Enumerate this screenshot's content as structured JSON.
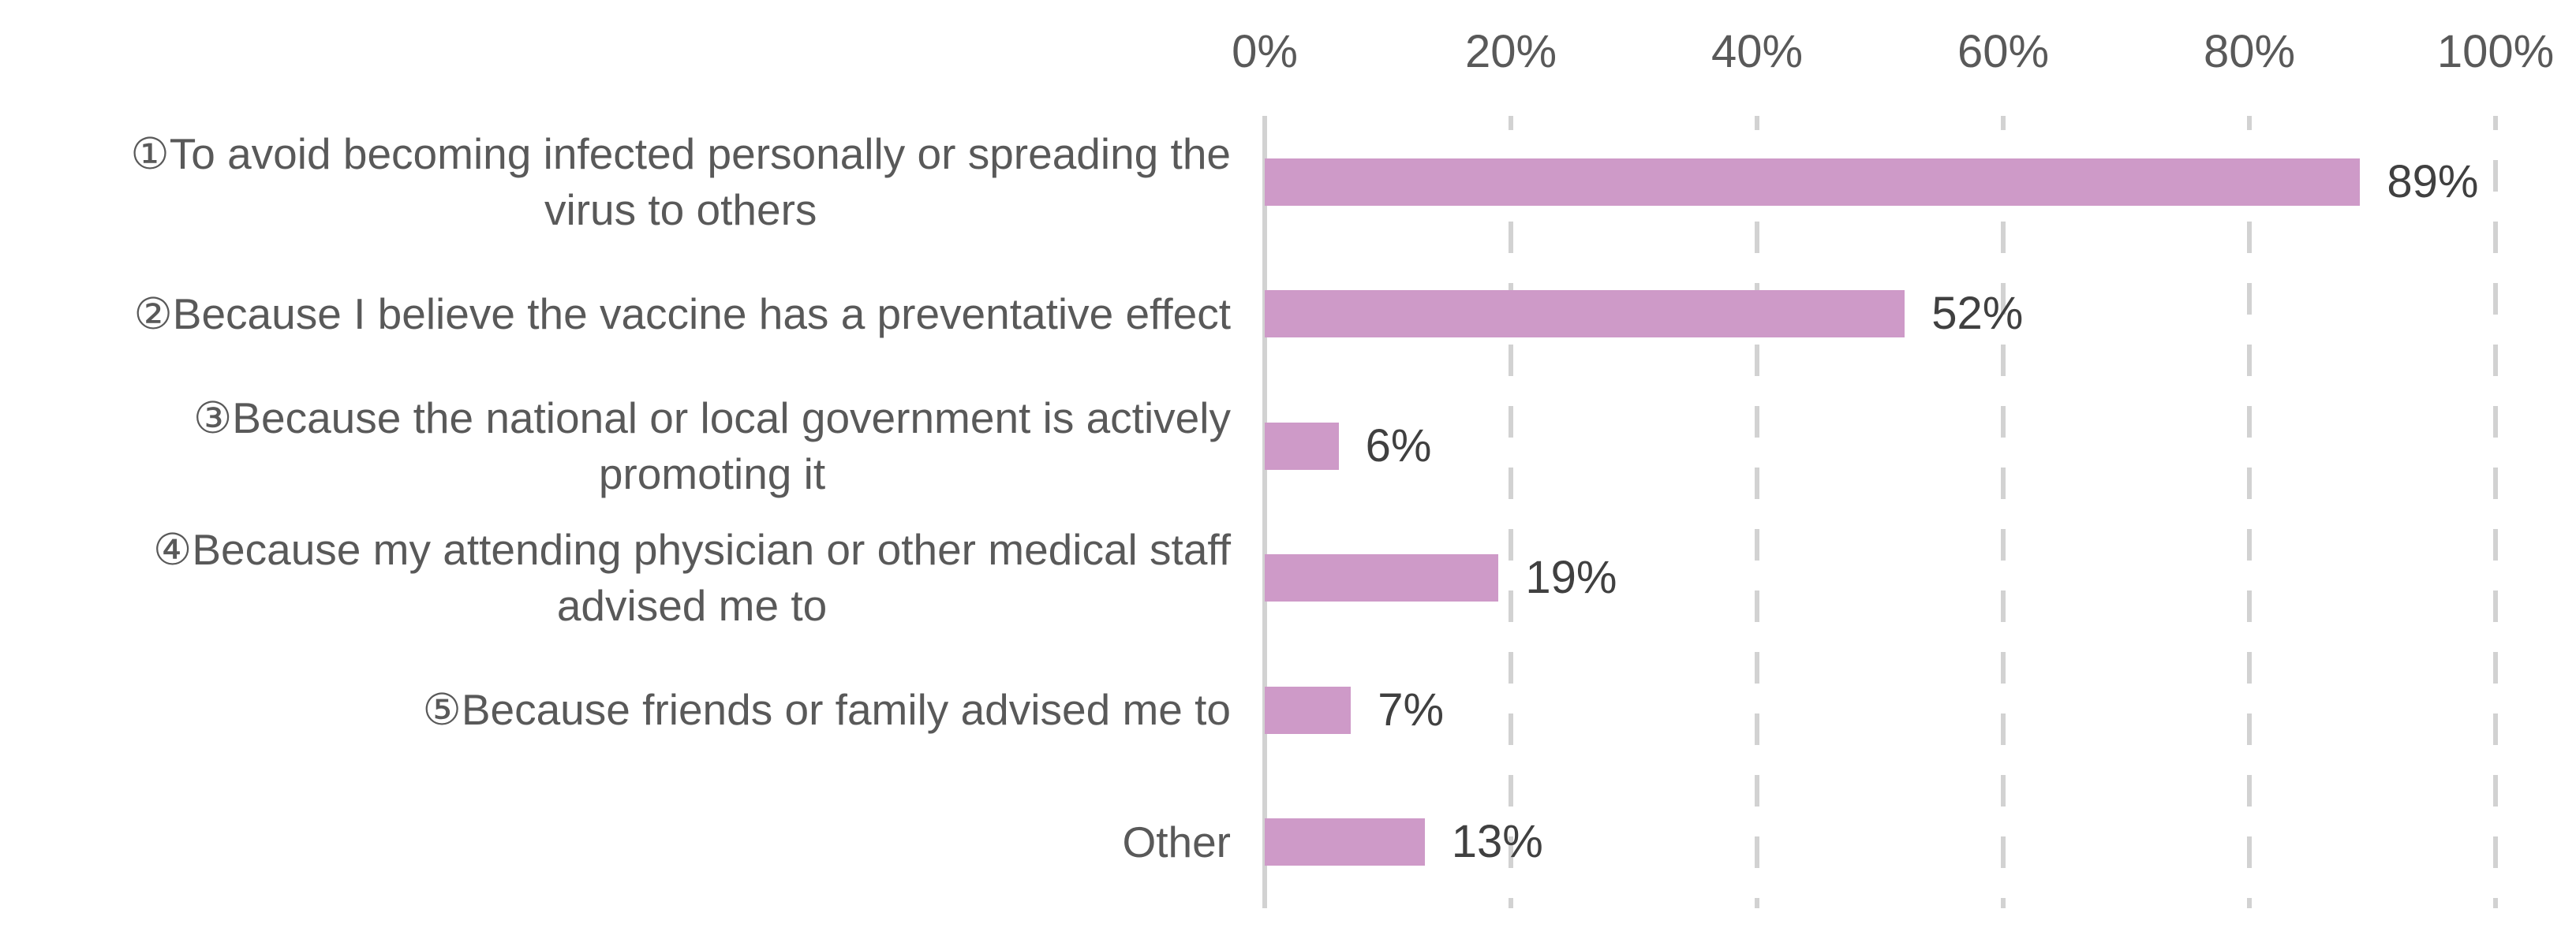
{
  "chart_data": {
    "type": "bar",
    "orientation": "horizontal",
    "title": "",
    "legend": null,
    "categories": [
      "①To avoid becoming infected personally or spreading the\nvirus to others",
      "②Because I believe the vaccine has a preventative effect",
      "③Because the national or local government is actively\npromoting it",
      "④Because my attending physician or other medical staff\nadvised me to",
      "⑤Because friends or family advised me to",
      "Other"
    ],
    "values": [
      89,
      52,
      6,
      19,
      7,
      13
    ],
    "value_labels": [
      "89%",
      "52%",
      "6%",
      "19%",
      "7%",
      "13%"
    ],
    "x_axis": {
      "position": "top",
      "min": 0,
      "max": 100,
      "tick_values": [
        0,
        20,
        40,
        60,
        80,
        100
      ],
      "tick_labels": [
        "0%",
        "20%",
        "40%",
        "60%",
        "80%",
        "100%"
      ],
      "gridlines": "dashed vertical, solid line at 0%"
    },
    "colors": {
      "bar_fill": "#CE9AC8",
      "axis_line": "#D2D2D2",
      "gridline": "#D2D2D2",
      "axis_text": "#595959",
      "category_text": "#595959",
      "value_text": "#404040"
    }
  }
}
